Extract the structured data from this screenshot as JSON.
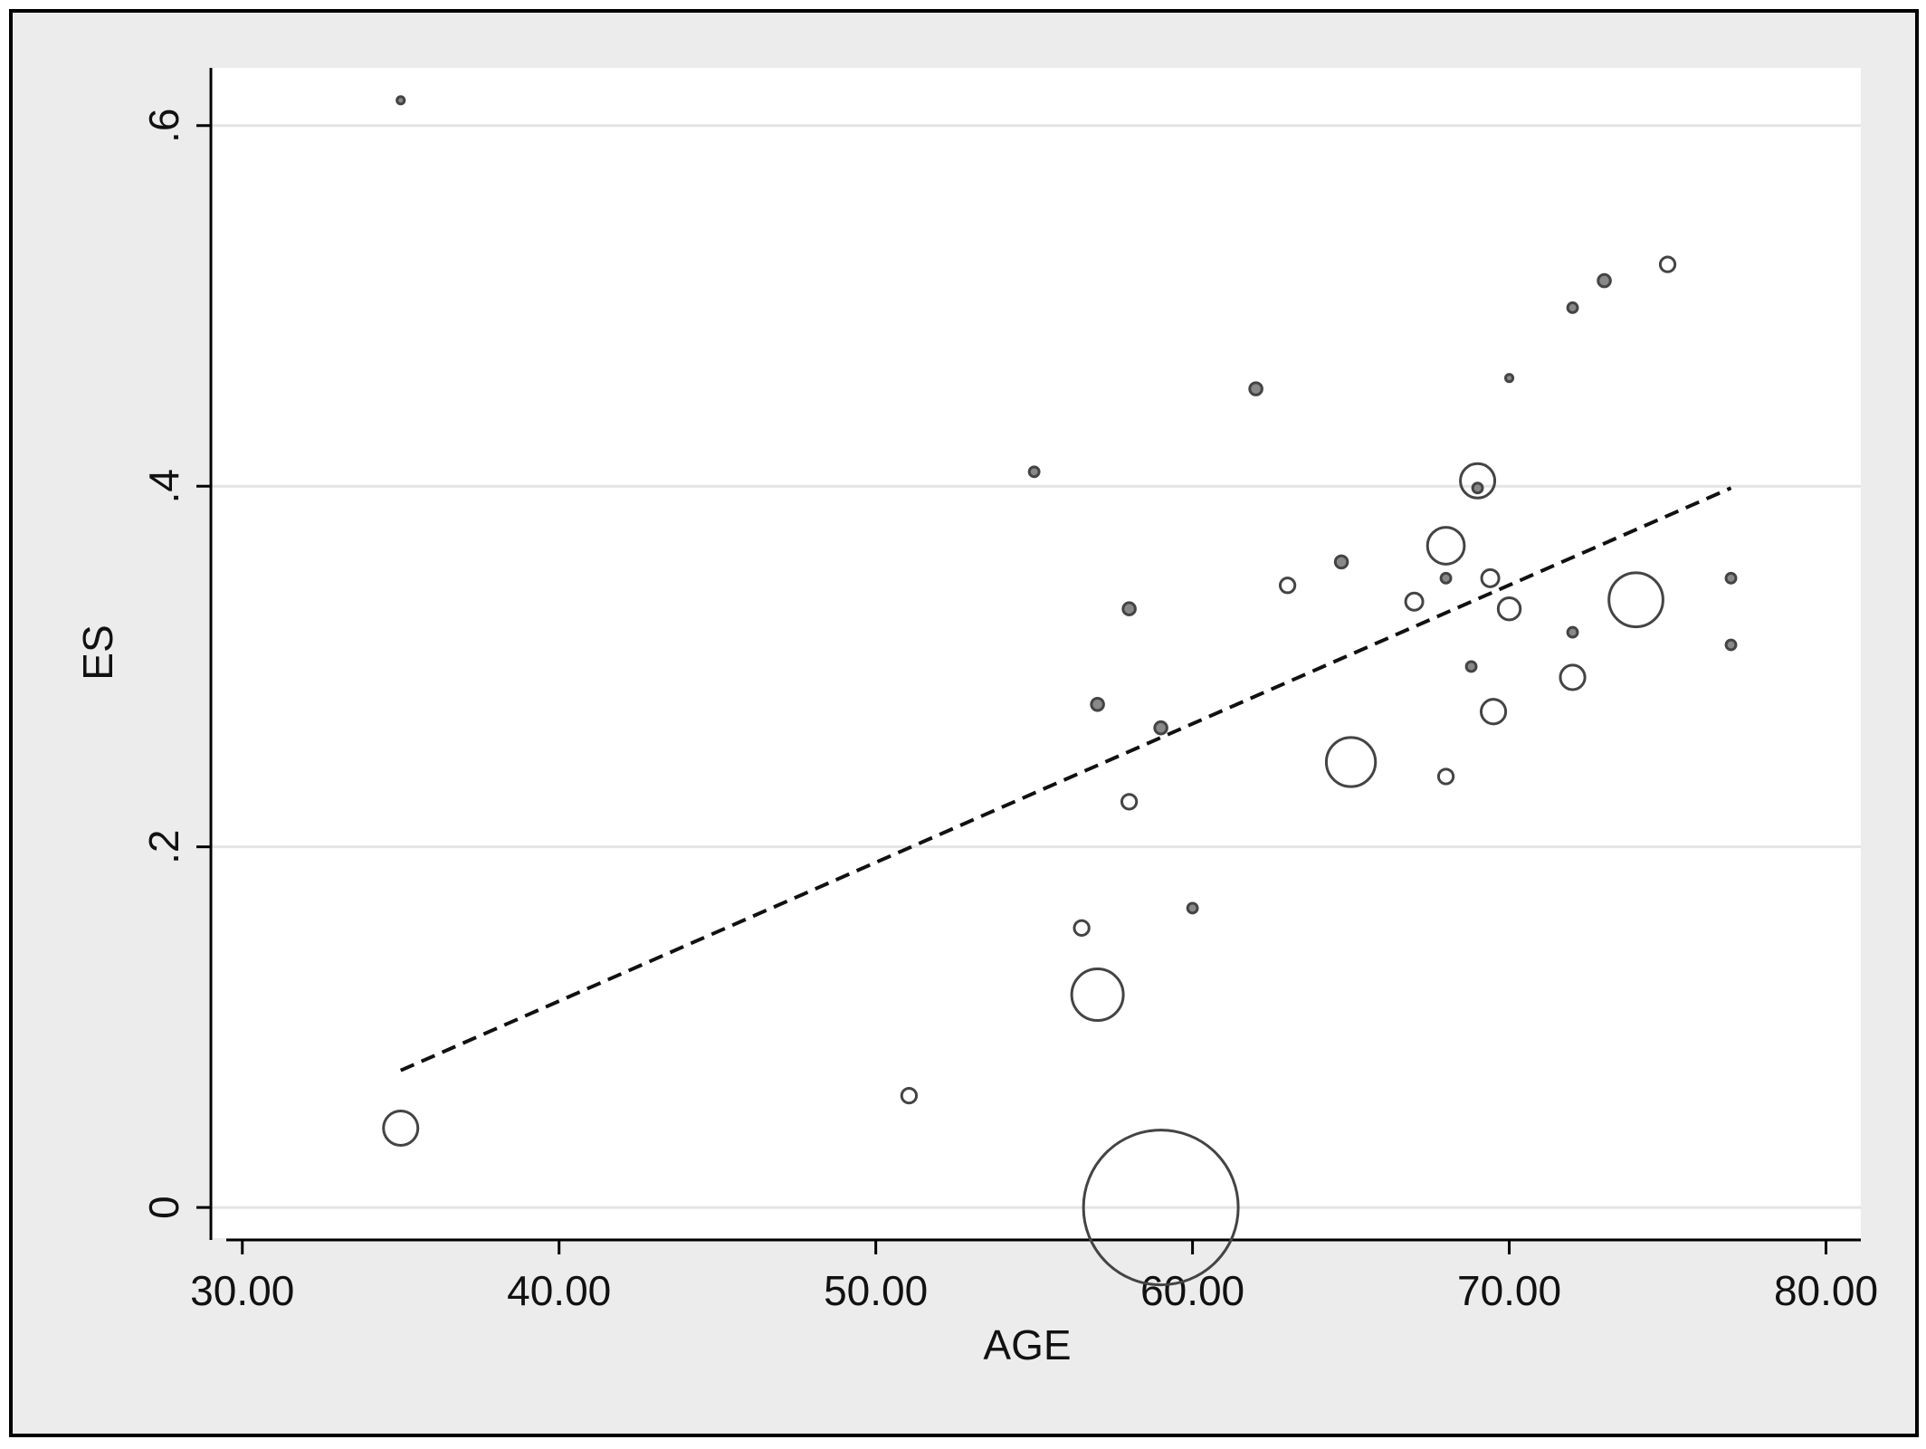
{
  "chart_data": {
    "type": "scatter",
    "x_label": "AGE",
    "y_label": "ES",
    "x": [
      35.0,
      35.0,
      51.05,
      55.0,
      56.5,
      57.0,
      57.0,
      58.0,
      58.0,
      59.0,
      59.0,
      60.0,
      62.0,
      63.0,
      64.7,
      65.0,
      67.0,
      68.0,
      68.0,
      68.0,
      68.8,
      69.0,
      69.0,
      69.4,
      69.5,
      70.0,
      70.0,
      72.0,
      72.0,
      72.0,
      73.0,
      74.0,
      75.0,
      77.0,
      77.0
    ],
    "values": [
      0.614,
      0.044,
      0.062,
      0.408,
      0.155,
      0.118,
      0.279,
      0.332,
      0.225,
      0.266,
      0.0,
      0.166,
      0.454,
      0.345,
      0.358,
      0.247,
      0.336,
      0.367,
      0.349,
      0.239,
      0.3,
      0.403,
      0.399,
      0.349,
      0.275,
      0.46,
      0.332,
      0.499,
      0.319,
      0.294,
      0.514,
      0.337,
      0.523,
      0.349,
      0.312
    ],
    "sizes": [
      9,
      196,
      36,
      16,
      36,
      441,
      25,
      25,
      36,
      25,
      3969,
      16,
      25,
      36,
      25,
      400,
      49,
      225,
      16,
      36,
      16,
      196,
      16,
      49,
      100,
      9,
      81,
      16,
      16,
      100,
      25,
      484,
      36,
      16,
      16
    ],
    "color": "#444444",
    "fit": {
      "x": [
        35,
        77
      ],
      "values": [
        0.076,
        0.399
      ],
      "color": "#111111"
    },
    "xlim": [
      28.95,
      81.1
    ],
    "ylim": [
      -0.017,
      0.632
    ],
    "xticks": [
      {
        "value": 30,
        "label": "30.00"
      },
      {
        "value": 40,
        "label": "40.00"
      },
      {
        "value": 50,
        "label": "50.00"
      },
      {
        "value": 60,
        "label": "60.00"
      },
      {
        "value": 70,
        "label": "70.00"
      },
      {
        "value": 80,
        "label": "80.00"
      }
    ],
    "yticks": [
      0,
      {
        "value": 0.2,
        "label": ".2"
      },
      {
        "value": 0.4,
        "label": ".4"
      },
      {
        "value": 0.6,
        "label": ".6"
      }
    ],
    "grid": true
  }
}
